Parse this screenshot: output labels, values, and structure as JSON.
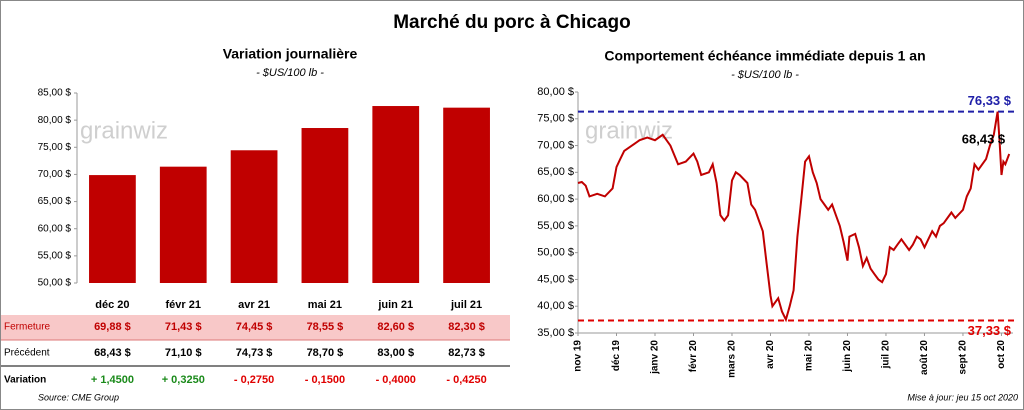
{
  "title": "Marché du porc à Chicago",
  "watermark": "grainwiz",
  "source": "Source: CME Group",
  "update": "Mise à jour: jeu 15 oct 2020",
  "chart_data": [
    {
      "type": "bar",
      "title": "Variation journalière",
      "subtitle": "- $US/100 lb -",
      "categories": [
        "déc 20",
        "févr 21",
        "avr 21",
        "mai 21",
        "juin 21",
        "juil 21"
      ],
      "values": [
        69.88,
        71.43,
        74.45,
        78.55,
        82.6,
        82.3
      ],
      "color": "#c00000",
      "ylim": [
        50,
        85
      ],
      "yticks": [
        {
          "value": 50,
          "label": "50,00 $"
        },
        {
          "value": 55,
          "label": "55,00 $"
        },
        {
          "value": 60,
          "label": "60,00 $"
        },
        {
          "value": 65,
          "label": "65,00 $"
        },
        {
          "value": 70,
          "label": "70,00 $"
        },
        {
          "value": 75,
          "label": "75,00 $"
        },
        {
          "value": 80,
          "label": "80,00 $"
        },
        {
          "value": 85,
          "label": "85,00 $"
        }
      ]
    },
    {
      "type": "line",
      "title": "Comportement  échéance immédiate depuis 1 an",
      "subtitle": "- $US/100 lb -",
      "color": "#c00000",
      "x": [
        0,
        0.1,
        0.2,
        0.3,
        0.5,
        0.7,
        0.9,
        1.0,
        1.1,
        1.2,
        1.4,
        1.6,
        1.8,
        2.0,
        2.2,
        2.4,
        2.6,
        2.8,
        3.0,
        3.1,
        3.2,
        3.4,
        3.5,
        3.6,
        3.7,
        3.8,
        3.9,
        4.0,
        4.1,
        4.2,
        4.4,
        4.5,
        4.6,
        4.7,
        4.8,
        4.9,
        5.0,
        5.05,
        5.2,
        5.3,
        5.4,
        5.5,
        5.6,
        5.7,
        5.8,
        5.9,
        6.0,
        6.1,
        6.2,
        6.3,
        6.4,
        6.5,
        6.6,
        6.7,
        6.8,
        6.9,
        7.0,
        7.05,
        7.2,
        7.3,
        7.4,
        7.5,
        7.6,
        7.7,
        7.8,
        7.9,
        8.0,
        8.1,
        8.2,
        8.3,
        8.4,
        8.6,
        8.7,
        8.8,
        8.9,
        9.0,
        9.1,
        9.2,
        9.3,
        9.4,
        9.5,
        9.7,
        9.8,
        10.0,
        10.1,
        10.2,
        10.3,
        10.4,
        10.6,
        10.7,
        10.8,
        10.9,
        10.95,
        11.0,
        11.05,
        11.1,
        11.2
      ],
      "values": [
        63,
        63.2,
        62.5,
        60.5,
        61,
        60.5,
        62,
        66,
        67.5,
        69,
        70,
        71,
        71.5,
        71,
        72,
        70,
        66.5,
        67,
        68.5,
        67,
        64.5,
        65,
        66.5,
        63,
        57,
        56,
        57,
        63.5,
        65,
        64.5,
        63,
        59,
        58,
        56,
        54,
        48,
        42,
        40,
        41.5,
        39,
        37.5,
        40,
        43,
        53,
        60,
        67,
        68,
        65,
        63,
        60,
        59,
        58,
        59,
        57,
        55,
        52,
        48.5,
        53,
        53.5,
        51,
        47.5,
        49,
        47,
        46,
        45,
        44.5,
        46,
        51,
        50.5,
        51.5,
        52.5,
        50.5,
        51.5,
        53,
        52.5,
        51,
        52.5,
        54,
        53,
        55,
        55.5,
        57.5,
        56.5,
        58,
        60.5,
        62,
        66.5,
        65.5,
        67.5,
        70,
        72,
        76.33,
        71,
        64.5,
        67,
        66.5,
        68.43
      ],
      "xlim": [
        0,
        11.3
      ],
      "xticks": [
        {
          "value": 0,
          "label": "nov 19"
        },
        {
          "value": 1,
          "label": "déc 19"
        },
        {
          "value": 2,
          "label": "janv 20"
        },
        {
          "value": 3,
          "label": "févr 20"
        },
        {
          "value": 4,
          "label": "mars 20"
        },
        {
          "value": 5,
          "label": "avr 20"
        },
        {
          "value": 6,
          "label": "mai 20"
        },
        {
          "value": 7,
          "label": "juin 20"
        },
        {
          "value": 8,
          "label": "juil 20"
        },
        {
          "value": 9,
          "label": "août 20"
        },
        {
          "value": 10,
          "label": "sept 20"
        },
        {
          "value": 11,
          "label": "oct 20"
        }
      ],
      "ylim": [
        35,
        80
      ],
      "yticks": [
        {
          "value": 35,
          "label": "35,00 $"
        },
        {
          "value": 40,
          "label": "40,00 $"
        },
        {
          "value": 45,
          "label": "45,00 $"
        },
        {
          "value": 50,
          "label": "50,00 $"
        },
        {
          "value": 55,
          "label": "55,00 $"
        },
        {
          "value": 60,
          "label": "60,00 $"
        },
        {
          "value": 65,
          "label": "65,00 $"
        },
        {
          "value": 70,
          "label": "70,00 $"
        },
        {
          "value": 75,
          "label": "75,00 $"
        },
        {
          "value": 80,
          "label": "80,00 $"
        }
      ],
      "hlines": [
        {
          "value": 76.33,
          "label": "76,33 $",
          "color": "#1f1fa8"
        },
        {
          "value": 37.33,
          "label": "37,33 $",
          "color": "#e00000"
        }
      ],
      "annotations": [
        {
          "text": "68,43 $",
          "x": 11.2,
          "y": 68.43
        }
      ]
    }
  ],
  "table": {
    "rows": [
      {
        "label": "Fermeture",
        "cells": [
          "69,88 $",
          "71,43 $",
          "74,45 $",
          "78,55 $",
          "82,60 $",
          "82,30 $"
        ]
      },
      {
        "label": "Précédent",
        "cells": [
          "68,43 $",
          "71,10 $",
          "74,73 $",
          "78,70 $",
          "83,00 $",
          "82,73 $"
        ]
      },
      {
        "label": "Variation",
        "cells": [
          "+ 1,4500",
          "+ 0,3250",
          "- 0,2750",
          "- 0,1500",
          "- 0,4000",
          "- 0,4250"
        ]
      }
    ]
  }
}
